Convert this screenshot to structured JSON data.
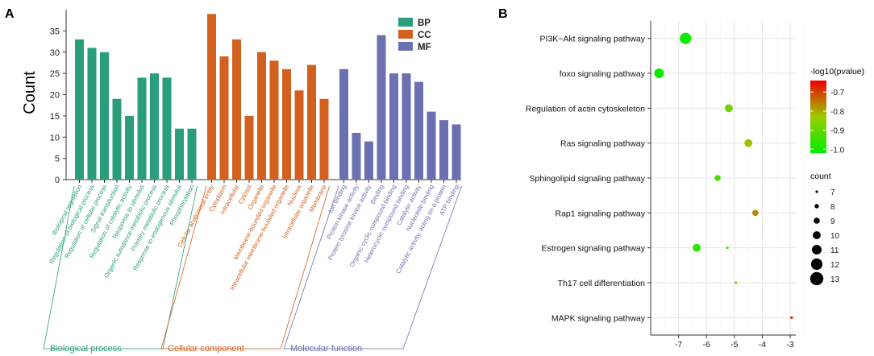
{
  "chart_data": [
    {
      "type": "bar",
      "panel_label": "A",
      "ylabel": "Count",
      "ylim": [
        0,
        40
      ],
      "yticks": [
        0,
        5,
        10,
        15,
        20,
        25,
        30,
        35
      ],
      "grid": false,
      "legend_position": "top-right",
      "series": [
        {
          "name": "BP",
          "group_label": "Biological process",
          "color": "#2a9d7c",
          "categories": [
            "Biological regulation",
            "Regulation of biological process",
            "Regulation of cellular process",
            "Signal transduction",
            "Regulation of catalytic activity",
            "Response to stimulus",
            "Organic substance metabolic process",
            "Primary metabolic process",
            "Response to endogenous stimulus",
            "Phosphorylation"
          ],
          "values": [
            33,
            31,
            30,
            19,
            15,
            24,
            25,
            24,
            12,
            12
          ]
        },
        {
          "name": "CC",
          "group_label": "Cellular component",
          "color": "#d2611f",
          "categories": [
            "Cellular anatomical entity",
            "Cytoplasm",
            "Intracellular",
            "Cytosol",
            "Organelle",
            "Membrane-bounded organelle",
            "Intracellular membrane-bounded organelle",
            "Nucleus",
            "Intracellular organelle",
            "Membrane"
          ],
          "values": [
            39,
            29,
            33,
            15,
            30,
            28,
            26,
            21,
            27,
            19
          ]
        },
        {
          "name": "MF",
          "group_label": "Molecular function",
          "color": "#6b70b0",
          "categories": [
            "Ion binding",
            "Protein kinase activity",
            "Protein tyrosine kinase activity",
            "Binding",
            "Organic cyclic compound binding",
            "Heterocyclic compound binding",
            "Catalytic activity",
            "Nucleotide binding",
            "Catalytic activity, acting on a protein",
            "ATP binding"
          ],
          "values": [
            26,
            11,
            9,
            34,
            25,
            25,
            23,
            16,
            14,
            13
          ]
        }
      ]
    },
    {
      "type": "scatter",
      "panel_label": "B",
      "xlim": [
        -8,
        -2.8
      ],
      "xticks": [
        -7,
        -6,
        -5,
        -4,
        -3
      ],
      "xtick_labels": [
        "-7",
        "-6",
        "-5",
        "-4",
        "-3"
      ],
      "grid": true,
      "categories": [
        "PI3K−Akt signaling pathway",
        "foxo signaling pathway",
        "Regulation of actin cytoskeleton",
        "Ras signaling pathway",
        "Sphingolipid signaling pathway",
        "Rap1 signaling pathway",
        "Estrogen signaling pathway",
        "Th17 cell differentiation",
        "MAPK signaling pathway"
      ],
      "points": [
        {
          "pathway": "PI3K−Akt signaling pathway",
          "x": -6.75,
          "count": 12,
          "neglog10p": -1.0
        },
        {
          "pathway": "foxo signaling pathway",
          "x": -7.7,
          "count": 11,
          "neglog10p": -1.0
        },
        {
          "pathway": "Regulation of actin cytoskeleton",
          "x": -5.2,
          "count": 10,
          "neglog10p": -0.88
        },
        {
          "pathway": "Ras signaling pathway",
          "x": -4.5,
          "count": 10,
          "neglog10p": -0.82
        },
        {
          "pathway": "Sphingolipid signaling pathway",
          "x": -5.6,
          "count": 9,
          "neglog10p": -0.92
        },
        {
          "pathway": "Rap1 signaling pathway",
          "x": -4.25,
          "count": 9,
          "neglog10p": -0.77
        },
        {
          "pathway": "Estrogen signaling pathway",
          "x": -6.35,
          "count": 10,
          "neglog10p": -0.97
        },
        {
          "pathway": "Estrogen signaling pathway",
          "x": -5.25,
          "count": 7,
          "neglog10p": -0.9
        },
        {
          "pathway": "Th17 cell differentiation",
          "x": -4.95,
          "count": 7,
          "neglog10p": -0.88
        },
        {
          "pathway": "MAPK signaling pathway",
          "x": -2.95,
          "count": 7,
          "neglog10p": -0.66
        }
      ],
      "color_legend": {
        "title": "-log10(pvalue)",
        "ticks": [
          -0.7,
          -0.8,
          -0.9,
          -1.0
        ],
        "tick_labels": [
          "-0.7",
          "-0.8",
          "-0.9",
          "-1.0"
        ],
        "range": [
          -1.02,
          -0.64
        ],
        "low_color": "#00ee00",
        "high_color": "#ee0000"
      },
      "size_legend": {
        "title": "count",
        "levels": [
          7,
          8,
          9,
          10,
          11,
          12,
          13
        ]
      }
    }
  ]
}
